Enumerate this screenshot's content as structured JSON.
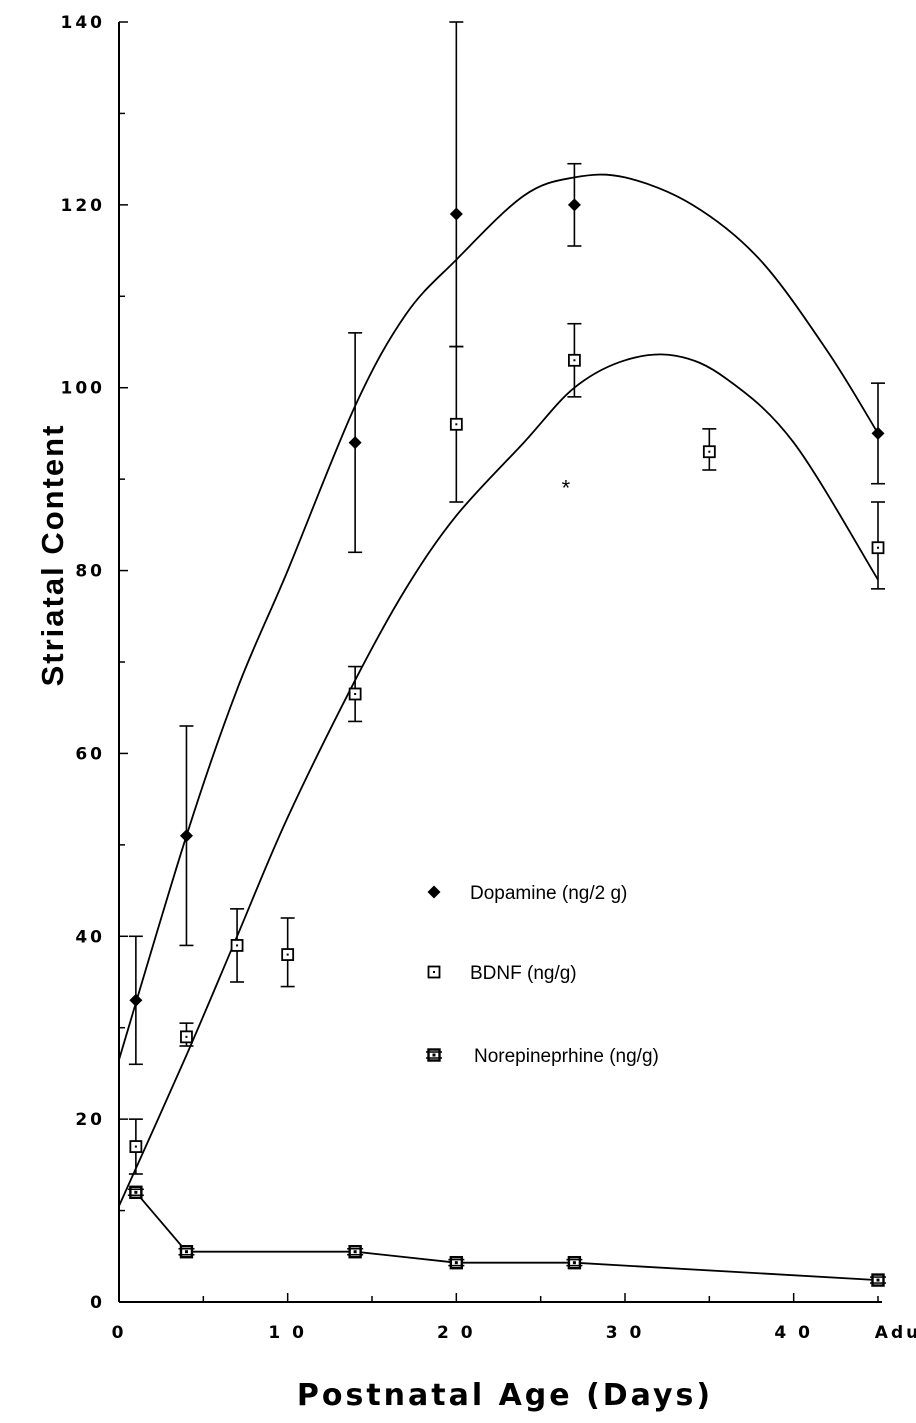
{
  "chart_data": {
    "type": "scatter",
    "title": "",
    "xlabel": "Postnatal Age (Days)",
    "ylabel": "Striatal Content",
    "xlim": [
      0,
      45
    ],
    "ylim": [
      0,
      140
    ],
    "x_ticks": [
      {
        "value": 0,
        "label": "0"
      },
      {
        "value": 10,
        "label": "1 0"
      },
      {
        "value": 20,
        "label": "2 0"
      },
      {
        "value": 30,
        "label": "3 0"
      },
      {
        "value": 40,
        "label": "4 0"
      },
      {
        "value": 45,
        "label": "Adult"
      }
    ],
    "y_ticks": [
      0,
      20,
      40,
      60,
      80,
      100,
      120,
      140
    ],
    "grid": false,
    "legend_position": "center-right",
    "series": [
      {
        "name": "Dopamine (ng/2 g)",
        "marker": "filled-diamond",
        "points": [
          {
            "x": 1,
            "y": 33,
            "err_low": 26,
            "err_high": 40
          },
          {
            "x": 4,
            "y": 51,
            "err_low": 39,
            "err_high": 63
          },
          {
            "x": 14,
            "y": 94,
            "err_low": 82,
            "err_high": 106
          },
          {
            "x": 20,
            "y": 119,
            "err_low": 104.5,
            "err_high": 140
          },
          {
            "x": 27,
            "y": 120,
            "err_low": 115.5,
            "err_high": 124.5
          },
          {
            "x": 45,
            "y": 95,
            "err_low": 89.5,
            "err_high": 100.5
          }
        ],
        "fit_curve": [
          [
            0,
            26.5
          ],
          [
            4,
            51
          ],
          [
            7,
            67
          ],
          [
            10,
            80
          ],
          [
            14,
            98
          ],
          [
            17,
            108
          ],
          [
            20,
            114
          ],
          [
            24,
            121
          ],
          [
            27,
            123
          ],
          [
            30,
            123
          ],
          [
            34,
            120
          ],
          [
            38,
            114
          ],
          [
            42,
            104
          ],
          [
            45,
            95
          ]
        ]
      },
      {
        "name": "BDNF (ng/g)",
        "marker": "open-square",
        "points": [
          {
            "x": 1,
            "y": 17,
            "err_low": 14,
            "err_high": 20
          },
          {
            "x": 4,
            "y": 29,
            "err_low": 28,
            "err_high": 30.5
          },
          {
            "x": 7,
            "y": 39,
            "err_low": 35,
            "err_high": 43
          },
          {
            "x": 10,
            "y": 38,
            "err_low": 34.5,
            "err_high": 42
          },
          {
            "x": 14,
            "y": 66.5,
            "err_low": 63.5,
            "err_high": 69.5
          },
          {
            "x": 20,
            "y": 96,
            "err_low": 87.5,
            "err_high": 104.5
          },
          {
            "x": 27,
            "y": 103,
            "err_low": 99,
            "err_high": 107
          },
          {
            "x": 35,
            "y": 93,
            "err_low": 91,
            "err_high": 95.5
          },
          {
            "x": 45,
            "y": 82.5,
            "err_low": 78,
            "err_high": 87.5
          }
        ],
        "fit_curve": [
          [
            0,
            10.5
          ],
          [
            4,
            27
          ],
          [
            7,
            40
          ],
          [
            10,
            53
          ],
          [
            14,
            68
          ],
          [
            17,
            78
          ],
          [
            20,
            86
          ],
          [
            24,
            94
          ],
          [
            27,
            100
          ],
          [
            30,
            103
          ],
          [
            33,
            103.5
          ],
          [
            36,
            101
          ],
          [
            40,
            94
          ],
          [
            45,
            79
          ]
        ]
      },
      {
        "name": "Norepineprhine (ng/g)",
        "marker": "crossed-square",
        "connected": true,
        "points": [
          {
            "x": 1,
            "y": 12
          },
          {
            "x": 4,
            "y": 5.5
          },
          {
            "x": 14,
            "y": 5.5
          },
          {
            "x": 20,
            "y": 4.3
          },
          {
            "x": 27,
            "y": 4.3
          },
          {
            "x": 45,
            "y": 2.4
          }
        ]
      }
    ],
    "annotations": [
      {
        "text": "*",
        "x": 26.5,
        "y": 89.5
      }
    ]
  }
}
